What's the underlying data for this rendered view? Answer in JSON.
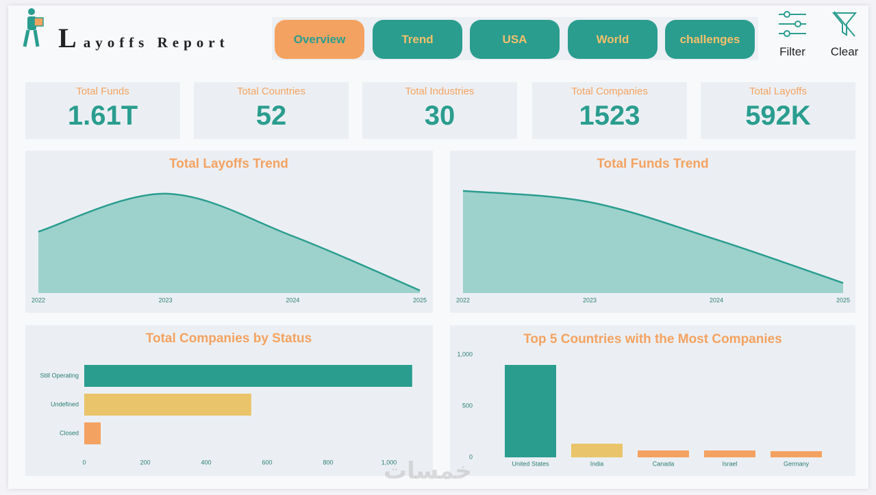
{
  "header": {
    "title": "Layoffs Report"
  },
  "nav": [
    "Overview",
    "Trend",
    "USA",
    "World",
    "challenges"
  ],
  "actions": [
    "Filter",
    "Clear"
  ],
  "kpis": [
    {
      "label": "Total Funds",
      "value": "1.61T"
    },
    {
      "label": "Total Countries",
      "value": 52
    },
    {
      "label": "Total Industries",
      "value": 30
    },
    {
      "label": "Total Companies",
      "value": 1523
    },
    {
      "label": "Total Layoffs",
      "value": "592K"
    }
  ],
  "chart_data": [
    {
      "type": "area",
      "title": "Total Layoffs Trend",
      "x": [
        2022,
        2023,
        2024,
        2025
      ],
      "xlim": [
        2022,
        2025
      ],
      "xticks": [
        2022,
        2023,
        2024,
        2025
      ],
      "values": [
        165000,
        267000,
        153000,
        7000
      ],
      "ylim": [
        0,
        300000
      ],
      "color": "#2a9d8f",
      "fill": "#9dd1cb"
    },
    {
      "type": "area",
      "title": "Total Funds Trend",
      "x": [
        2022,
        2023,
        2024,
        2025
      ],
      "xlim": [
        2022,
        2025
      ],
      "xticks": [
        2022,
        2023,
        2024,
        2025
      ],
      "values": [
        641000000000,
        570000000000,
        335000000000,
        63000000000
      ],
      "ylim": [
        0,
        700000000000
      ],
      "color": "#2a9d8f",
      "fill": "#9dd1cb"
    },
    {
      "type": "barh",
      "title": "Total Companies by Status",
      "categories": [
        "Still Operating",
        "Undefined",
        "Closed"
      ],
      "values": [
        1076,
        548,
        54
      ],
      "colors": [
        "#2a9d8f",
        "#e9c46a",
        "#f4a261"
      ],
      "xlim": [
        0,
        1100
      ],
      "xticks": [
        0,
        200,
        400,
        600,
        800,
        {
          "value": 1000,
          "label": "1,000"
        }
      ]
    },
    {
      "type": "bar",
      "title": "Top 5 Countries with the Most Companies",
      "categories": [
        "United States",
        "India",
        "Canada",
        "Israel",
        "Germany"
      ],
      "values": [
        900,
        133,
        67,
        67,
        60
      ],
      "colors": [
        "#2a9d8f",
        "#e9c46a",
        "#f4a261",
        "#f4a261",
        "#f4a261"
      ],
      "ylim": [
        0,
        1000
      ],
      "yticks": [
        0,
        500,
        {
          "value": 1000,
          "label": "1,000"
        }
      ]
    }
  ],
  "watermark": "خمسات"
}
